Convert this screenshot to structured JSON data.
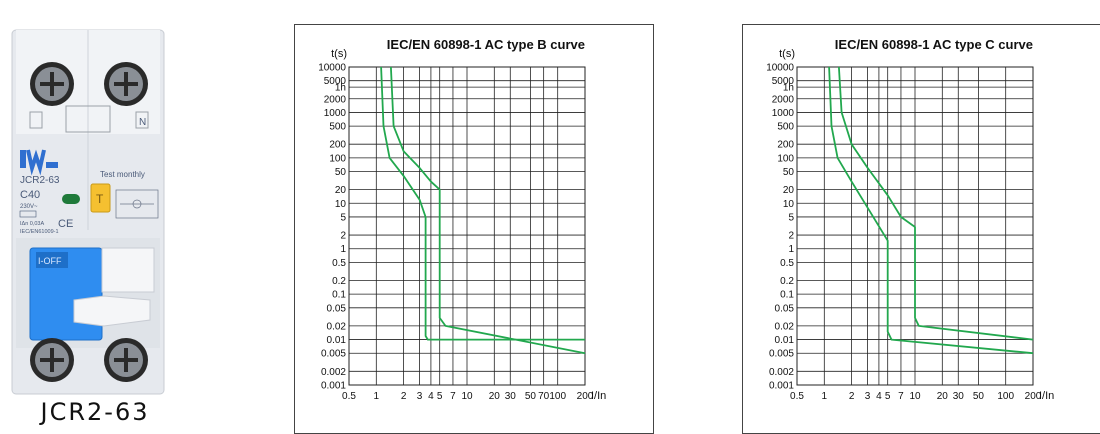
{
  "product": {
    "caption": "JCR2-63",
    "model": "JCR2-63",
    "rating": "C40",
    "voltage": "230V~",
    "test_label": "Test monthly",
    "test_button": "T",
    "on_off": "I-OFF",
    "std": "IEC/EN61009-1",
    "ce": "CE",
    "terminal_n": "N",
    "sensitivity": "IΔn 0,03A"
  },
  "chart_data": [
    {
      "type": "line",
      "title": "IEC/EN 60898-1 AC type B curve",
      "ylabel": "t(s)",
      "xlabel": "I/In",
      "x_scale": "log",
      "y_scale": "log",
      "grid": true,
      "xlim": [
        0.5,
        200
      ],
      "ylim": [
        0.001,
        10000
      ],
      "x_ticks": [
        {
          "v": 0.5,
          "label": "0.5"
        },
        {
          "v": 1,
          "label": "1"
        },
        {
          "v": 2,
          "label": "2"
        },
        {
          "v": 3,
          "label": "3"
        },
        {
          "v": 4,
          "label": "4"
        },
        {
          "v": 5,
          "label": "5"
        },
        {
          "v": 7,
          "label": "7"
        },
        {
          "v": 10,
          "label": "10"
        },
        {
          "v": 20,
          "label": "20"
        },
        {
          "v": 30,
          "label": "30"
        },
        {
          "v": 50,
          "label": "50"
        },
        {
          "v": 70,
          "label": "70"
        },
        {
          "v": 100,
          "label": "100"
        },
        {
          "v": 200,
          "label": "200"
        }
      ],
      "y_ticks": [
        {
          "v": 10000,
          "label": "10000"
        },
        {
          "v": 5000,
          "label": "5000"
        },
        {
          "v": 3600,
          "label": "1h"
        },
        {
          "v": 2000,
          "label": "2000"
        },
        {
          "v": 1000,
          "label": "1000"
        },
        {
          "v": 500,
          "label": "500"
        },
        {
          "v": 200,
          "label": "200"
        },
        {
          "v": 100,
          "label": "100"
        },
        {
          "v": 50,
          "label": "50"
        },
        {
          "v": 20,
          "label": "20"
        },
        {
          "v": 10,
          "label": "10"
        },
        {
          "v": 5,
          "label": "5"
        },
        {
          "v": 2,
          "label": "2"
        },
        {
          "v": 1,
          "label": "1"
        },
        {
          "v": 0.5,
          "label": "0.5"
        },
        {
          "v": 0.2,
          "label": "0.2"
        },
        {
          "v": 0.1,
          "label": "0.1"
        },
        {
          "v": 0.05,
          "label": "0.05"
        },
        {
          "v": 0.02,
          "label": "0.02"
        },
        {
          "v": 0.01,
          "label": "0.01"
        },
        {
          "v": 0.005,
          "label": "0.005"
        },
        {
          "v": 0.002,
          "label": "0.002"
        },
        {
          "v": 0.001,
          "label": "0.001"
        }
      ],
      "series": [
        {
          "points": [
            [
              1.13,
              10000
            ],
            [
              1.2,
              500
            ],
            [
              1.4,
              100
            ],
            [
              2,
              40
            ],
            [
              3,
              12
            ],
            [
              3.5,
              5
            ],
            [
              3.5,
              0.012
            ],
            [
              3.7,
              0.01
            ],
            [
              200,
              0.01
            ]
          ]
        },
        {
          "points": [
            [
              1.45,
              10000
            ],
            [
              1.55,
              500
            ],
            [
              2,
              140
            ],
            [
              3,
              60
            ],
            [
              4,
              30
            ],
            [
              5,
              20
            ],
            [
              5,
              0.03
            ],
            [
              5.8,
              0.02
            ],
            [
              200,
              0.005
            ]
          ]
        }
      ]
    },
    {
      "type": "line",
      "title": "IEC/EN 60898-1 AC type C curve",
      "ylabel": "t(s)",
      "xlabel": "I/In",
      "x_scale": "log",
      "y_scale": "log",
      "grid": true,
      "xlim": [
        0.5,
        200
      ],
      "ylim": [
        0.001,
        10000
      ],
      "x_ticks": [
        {
          "v": 0.5,
          "label": "0.5"
        },
        {
          "v": 1,
          "label": "1"
        },
        {
          "v": 2,
          "label": "2"
        },
        {
          "v": 3,
          "label": "3"
        },
        {
          "v": 4,
          "label": "4"
        },
        {
          "v": 5,
          "label": "5"
        },
        {
          "v": 7,
          "label": "7"
        },
        {
          "v": 10,
          "label": "10"
        },
        {
          "v": 20,
          "label": "20"
        },
        {
          "v": 30,
          "label": "30"
        },
        {
          "v": 50,
          "label": "50"
        },
        {
          "v": 100,
          "label": "100"
        },
        {
          "v": 200,
          "label": "200"
        }
      ],
      "y_ticks": [
        {
          "v": 10000,
          "label": "10000"
        },
        {
          "v": 5000,
          "label": "5000"
        },
        {
          "v": 3600,
          "label": "1h"
        },
        {
          "v": 2000,
          "label": "2000"
        },
        {
          "v": 1000,
          "label": "1000"
        },
        {
          "v": 500,
          "label": "500"
        },
        {
          "v": 200,
          "label": "200"
        },
        {
          "v": 100,
          "label": "100"
        },
        {
          "v": 50,
          "label": "50"
        },
        {
          "v": 20,
          "label": "20"
        },
        {
          "v": 10,
          "label": "10"
        },
        {
          "v": 5,
          "label": "5"
        },
        {
          "v": 2,
          "label": "2"
        },
        {
          "v": 1,
          "label": "1"
        },
        {
          "v": 0.5,
          "label": "0.5"
        },
        {
          "v": 0.2,
          "label": "0.2"
        },
        {
          "v": 0.1,
          "label": "0.1"
        },
        {
          "v": 0.05,
          "label": "0.05"
        },
        {
          "v": 0.02,
          "label": "0.02"
        },
        {
          "v": 0.01,
          "label": "0.01"
        },
        {
          "v": 0.005,
          "label": "0.005"
        },
        {
          "v": 0.002,
          "label": "0.002"
        },
        {
          "v": 0.001,
          "label": "0.001"
        }
      ],
      "series": [
        {
          "points": [
            [
              1.13,
              10000
            ],
            [
              1.2,
              500
            ],
            [
              1.4,
              100
            ],
            [
              2,
              30
            ],
            [
              3,
              8
            ],
            [
              5,
              1.5
            ],
            [
              5,
              0.015
            ],
            [
              5.5,
              0.01
            ],
            [
              200,
              0.005
            ]
          ]
        },
        {
          "points": [
            [
              1.45,
              10000
            ],
            [
              1.55,
              1000
            ],
            [
              2,
              200
            ],
            [
              3,
              60
            ],
            [
              5,
              15
            ],
            [
              7,
              5
            ],
            [
              10,
              3
            ],
            [
              10,
              0.03
            ],
            [
              11,
              0.02
            ],
            [
              200,
              0.01
            ]
          ]
        }
      ]
    }
  ],
  "colors": {
    "curve": "#22a84e",
    "grid": "#222222",
    "device_body": "#e9ecf0",
    "device_blue": "#2f8df0",
    "test_button": "#f5c030",
    "led": "#1f7a3a"
  }
}
